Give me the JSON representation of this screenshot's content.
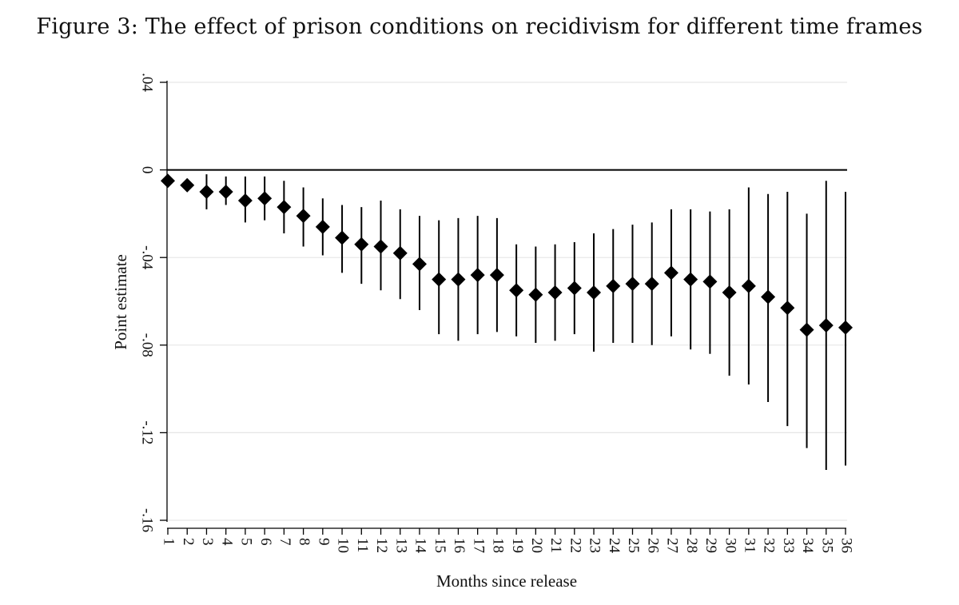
{
  "figure": {
    "title": "Figure 3:  The effect of prison conditions on recidivism for different time frames"
  },
  "chart_data": {
    "type": "scatter",
    "subtype": "coefficient-plot-with-confidence-intervals",
    "title": "Figure 3:  The effect of prison conditions on recidivism for different time frames",
    "xlabel": "Months since release",
    "ylabel": "Point estimate",
    "ylim": [
      -0.16,
      0.04
    ],
    "yticks": [
      0.04,
      0,
      -0.04,
      -0.08,
      -0.12,
      -0.16
    ],
    "ytick_labels": [
      ".04",
      "0",
      "-.04",
      "-.08",
      "-.12",
      "-.16"
    ],
    "x": [
      1,
      2,
      3,
      4,
      5,
      6,
      7,
      8,
      9,
      10,
      11,
      12,
      13,
      14,
      15,
      16,
      17,
      18,
      19,
      20,
      21,
      22,
      23,
      24,
      25,
      26,
      27,
      28,
      29,
      30,
      31,
      32,
      33,
      34,
      35,
      36
    ],
    "xtick_labels": [
      "1",
      "2",
      "3",
      "4",
      "5",
      "6",
      "7",
      "8",
      "9",
      "10",
      "11",
      "12",
      "13",
      "14",
      "15",
      "16",
      "17",
      "18",
      "19",
      "20",
      "21",
      "22",
      "23",
      "24",
      "25",
      "26",
      "27",
      "28",
      "29",
      "30",
      "31",
      "32",
      "33",
      "34",
      "35",
      "36"
    ],
    "series": [
      {
        "name": "Point estimate",
        "marker": "diamond",
        "values": [
          -0.005,
          -0.007,
          -0.01,
          -0.01,
          -0.014,
          -0.013,
          -0.017,
          -0.021,
          -0.026,
          -0.031,
          -0.034,
          -0.035,
          -0.038,
          -0.043,
          -0.05,
          -0.05,
          -0.048,
          -0.048,
          -0.055,
          -0.057,
          -0.056,
          -0.054,
          -0.056,
          -0.053,
          -0.052,
          -0.052,
          -0.047,
          -0.05,
          -0.051,
          -0.056,
          -0.053,
          -0.058,
          -0.063,
          -0.073,
          -0.071,
          -0.072
        ],
        "ci_lower": [
          -0.006,
          -0.009,
          -0.018,
          -0.016,
          -0.024,
          -0.023,
          -0.029,
          -0.035,
          -0.039,
          -0.047,
          -0.052,
          -0.055,
          -0.059,
          -0.064,
          -0.075,
          -0.078,
          -0.075,
          -0.074,
          -0.076,
          -0.079,
          -0.078,
          -0.075,
          -0.083,
          -0.079,
          -0.079,
          -0.08,
          -0.076,
          -0.082,
          -0.084,
          -0.094,
          -0.098,
          -0.106,
          -0.117,
          -0.127,
          -0.137,
          -0.135
        ],
        "ci_upper": [
          -0.004,
          -0.004,
          -0.002,
          -0.003,
          -0.003,
          -0.003,
          -0.005,
          -0.008,
          -0.013,
          -0.016,
          -0.017,
          -0.014,
          -0.018,
          -0.021,
          -0.023,
          -0.022,
          -0.021,
          -0.022,
          -0.034,
          -0.035,
          -0.034,
          -0.033,
          -0.029,
          -0.027,
          -0.025,
          -0.024,
          -0.018,
          -0.018,
          -0.019,
          -0.018,
          -0.008,
          -0.011,
          -0.01,
          -0.02,
          -0.005,
          -0.01
        ]
      }
    ],
    "reference_line_y": 0,
    "grid": true,
    "legend": "none",
    "colors": {
      "marker": "#000000",
      "ci_line": "#000000",
      "reference_line": "#000000",
      "grid": "#e6e6e6",
      "axis": "#000000"
    }
  }
}
